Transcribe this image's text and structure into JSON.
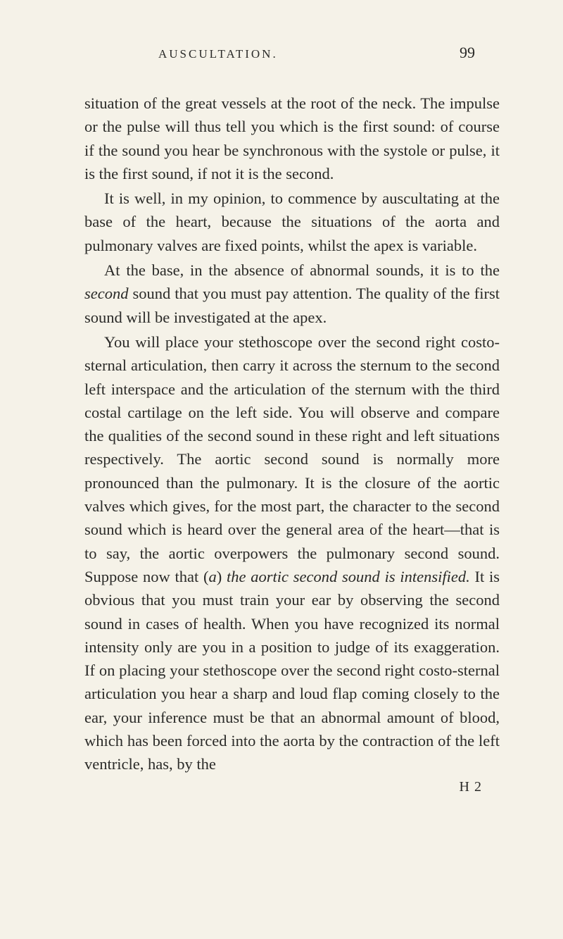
{
  "page": {
    "background_color": "#f5f2e8",
    "text_color": "#2a2a28",
    "font_family": "Georgia, Times New Roman, serif",
    "body_fontsize": 22.5,
    "line_height": 1.48
  },
  "header": {
    "title": "AUSCULTATION.",
    "page_number": "99",
    "title_fontsize": 17,
    "number_fontsize": 22
  },
  "paragraphs": [
    {
      "indent": false,
      "segments": [
        {
          "text": "situation of the great vessels at the root of the neck. The impulse or the pulse will thus tell you which is the first sound: of course if the sound you hear be synchronous with the systole or pulse, it is the first sound, if not it is the second.",
          "italic": false
        }
      ]
    },
    {
      "indent": true,
      "segments": [
        {
          "text": "It is well, in my opinion, to commence by auscultating at the base of the heart, because the situations of the aorta and pulmonary valves are fixed points, whilst the apex is variable.",
          "italic": false
        }
      ]
    },
    {
      "indent": true,
      "segments": [
        {
          "text": "At the base, in the absence of abnormal sounds, it is to the ",
          "italic": false
        },
        {
          "text": "second",
          "italic": true
        },
        {
          "text": " sound that you must pay attention. The quality of the first sound will be investigated at the apex.",
          "italic": false
        }
      ]
    },
    {
      "indent": true,
      "segments": [
        {
          "text": "You will place your stethoscope over the second right costo-sternal articulation, then carry it across the sternum to the second left interspace and the articulation of the sternum with the third costal cartilage on the left side. You will observe and compare the qualities of the second sound in these right and left situations respectively. The aortic second sound is normally more pronounced than the pulmonary. It is the closure of the aortic valves which gives, for the most part, the character to the second sound which is heard over the general area of the heart—that is to say, the aortic overpowers the pulmonary second sound. Suppose now that (",
          "italic": false
        },
        {
          "text": "a",
          "italic": true
        },
        {
          "text": ") ",
          "italic": false
        },
        {
          "text": "the aortic second sound is intensified.",
          "italic": true
        },
        {
          "text": " It is obvious that you must train your ear by observing the second sound in cases of health. When you have recognized its normal intensity only are you in a position to judge of its exaggeration. If on placing your stethoscope over the second right costo-sternal articulation you hear a sharp and loud flap coming closely to the ear, your inference must be that an abnormal amount of blood, which has been forced into the aorta by the contraction of the left ventricle, has, by the",
          "italic": false
        }
      ]
    }
  ],
  "footer": {
    "signature_mark": "H 2",
    "fontsize": 20
  }
}
